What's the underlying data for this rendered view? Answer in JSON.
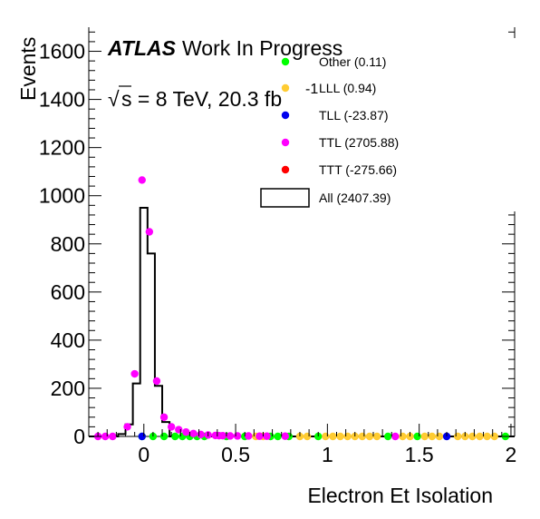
{
  "chart_data": {
    "type": "scatter",
    "title": "",
    "xlabel": "Electron Et Isolation",
    "ylabel": "Events",
    "xlim": [
      -0.3,
      2.02
    ],
    "ylim": [
      0,
      1700
    ],
    "x_ticks": [
      0,
      0.5,
      1,
      1.5,
      2
    ],
    "x_tick_labels": [
      "0",
      "0.5",
      "1",
      "1.5",
      "2"
    ],
    "y_ticks": [
      0,
      200,
      400,
      600,
      800,
      1000,
      1200,
      1400,
      1600
    ],
    "y_tick_labels": [
      "0",
      "200",
      "400",
      "600",
      "800",
      "1000",
      "1200",
      "1400",
      "1600"
    ],
    "grid": false,
    "legend_position": "top-right",
    "annotations": {
      "atlas": "ATLAS",
      "status": "Work In Progress",
      "energy_prefix": "s = 8 TeV, 20.3 fb",
      "lumi_exponent": "-1",
      "sqrt_symbol": "√"
    },
    "series": [
      {
        "name": "Other (0.11)",
        "color": "#00ff00",
        "marker": "dot",
        "x": [
          -0.01,
          0.05,
          0.11,
          0.17,
          0.21,
          0.25,
          0.29,
          0.33,
          0.45,
          0.55,
          0.69,
          0.73,
          0.79,
          0.95,
          1.33,
          1.49,
          1.97
        ],
        "y": [
          0,
          0,
          0,
          0,
          0,
          0,
          0,
          0,
          0,
          0,
          0,
          0,
          0,
          0,
          0,
          0,
          0
        ]
      },
      {
        "name": "LLL (0.94)",
        "color": "#ffcc33",
        "marker": "dot",
        "x": [
          0.61,
          0.65,
          0.85,
          0.89,
          0.99,
          1.03,
          1.07,
          1.11,
          1.15,
          1.19,
          1.23,
          1.27,
          1.41,
          1.45,
          1.53,
          1.57,
          1.61,
          1.71,
          1.75,
          1.79,
          1.83,
          1.87,
          1.91
        ],
        "y": [
          0,
          0,
          0,
          0,
          0,
          0,
          0,
          0,
          0,
          0,
          0,
          0,
          0,
          0,
          0,
          0,
          0,
          0,
          0,
          0,
          0,
          0,
          0
        ]
      },
      {
        "name": "TLL (-23.87)",
        "color": "#0000ee",
        "marker": "dot",
        "x": [
          -0.01,
          1.65
        ],
        "y": [
          0,
          0
        ]
      },
      {
        "name": "TTL (2705.88)",
        "color": "#ff00ff",
        "marker": "dot",
        "x": [
          -0.25,
          -0.21,
          -0.17,
          -0.09,
          -0.05,
          -0.01,
          0.03,
          0.07,
          0.11,
          0.15,
          0.19,
          0.23,
          0.27,
          0.31,
          0.35,
          0.39,
          0.41,
          0.43,
          0.47,
          0.51,
          0.57,
          0.63,
          0.67,
          0.77,
          1.37
        ],
        "y": [
          0,
          0,
          0,
          40,
          260,
          1065,
          850,
          230,
          80,
          40,
          28,
          18,
          12,
          8,
          6,
          4,
          3,
          3,
          2,
          2,
          2,
          1,
          1,
          1,
          0
        ]
      },
      {
        "name": "TTT (-275.66)",
        "color": "#ff0000",
        "marker": "dot",
        "x": [],
        "y": []
      },
      {
        "name": "All (2407.39)",
        "color": "#000000",
        "marker": "histogram",
        "bin_edges": [
          -0.3,
          -0.26,
          -0.22,
          -0.18,
          -0.14,
          -0.1,
          -0.06,
          -0.02,
          0.02,
          0.06,
          0.1,
          0.14,
          2.02
        ],
        "values": [
          0,
          0,
          0,
          0,
          10,
          50,
          220,
          950,
          760,
          210,
          60,
          0
        ]
      }
    ]
  }
}
